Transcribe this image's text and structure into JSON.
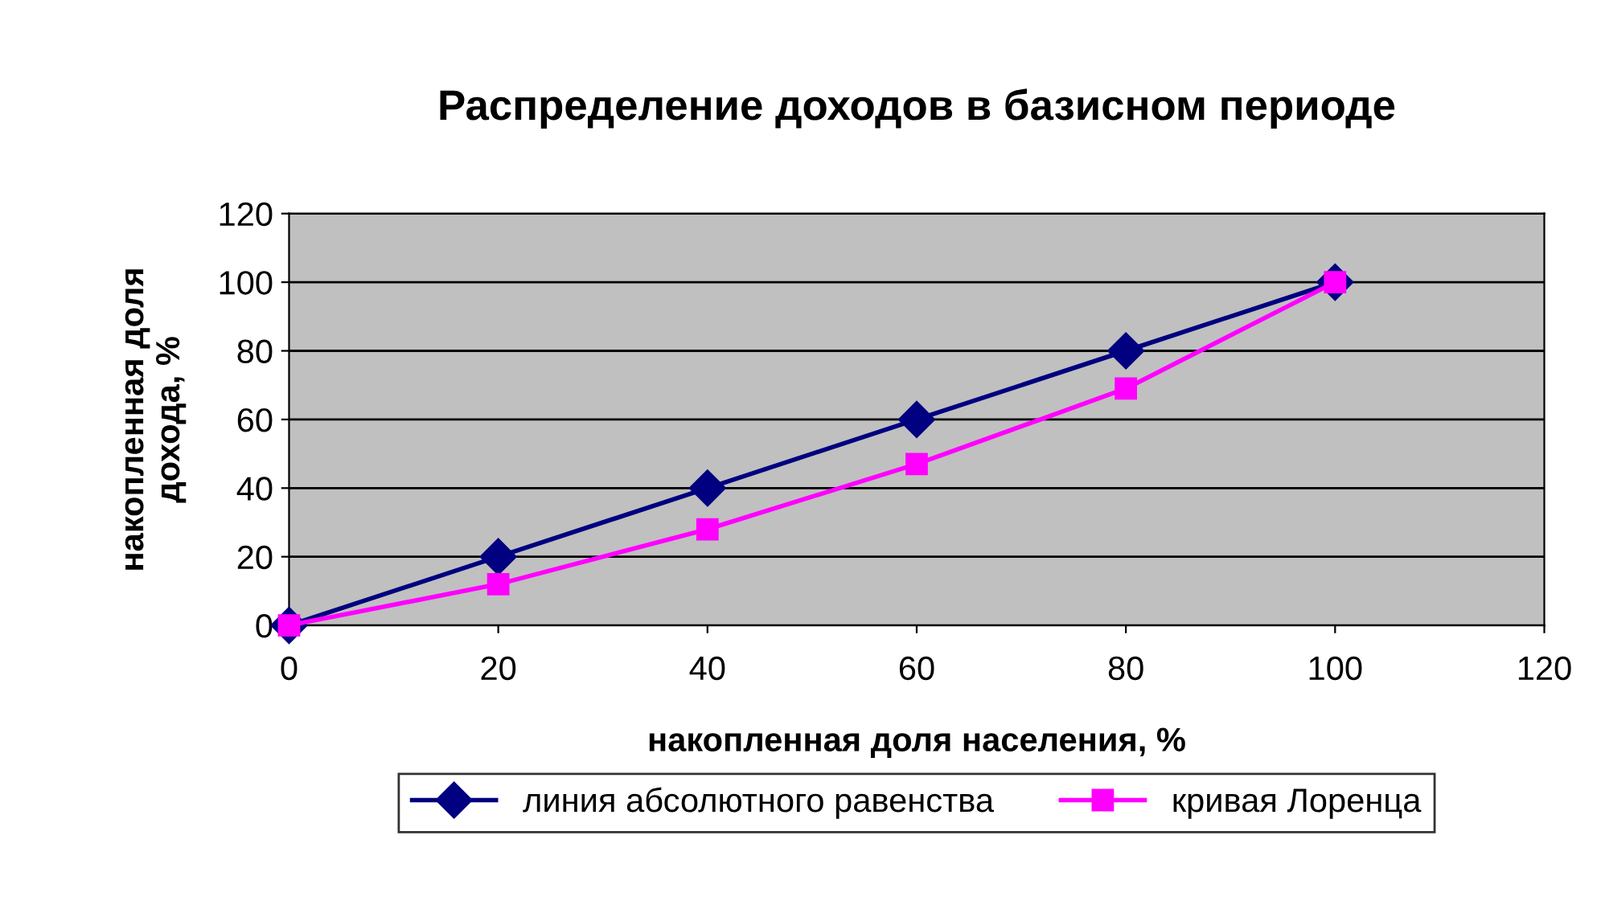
{
  "chart_data": {
    "type": "line",
    "title": "Распределение доходов в базисном периоде",
    "xlabel": "накопленная доля населения, %",
    "ylabel": "накопленная доля\nдохода, %",
    "x": [
      0,
      20,
      40,
      60,
      80,
      100
    ],
    "series": [
      {
        "name": "линия абсолютного равенства",
        "color": "#000080",
        "marker": "diamond",
        "values": [
          0,
          20,
          40,
          60,
          80,
          100
        ]
      },
      {
        "name": "кривая Лоренца",
        "color": "#ff00ff",
        "marker": "square",
        "values": [
          0,
          12,
          28,
          47,
          69,
          100
        ]
      }
    ],
    "xlim": [
      0,
      120
    ],
    "xticks": [
      0,
      20,
      40,
      60,
      80,
      100,
      120
    ],
    "ylim": [
      0,
      120
    ],
    "yticks": [
      0,
      20,
      40,
      60,
      80,
      100,
      120
    ],
    "grid": "y",
    "legend": "bottom",
    "line_style": "solid"
  }
}
